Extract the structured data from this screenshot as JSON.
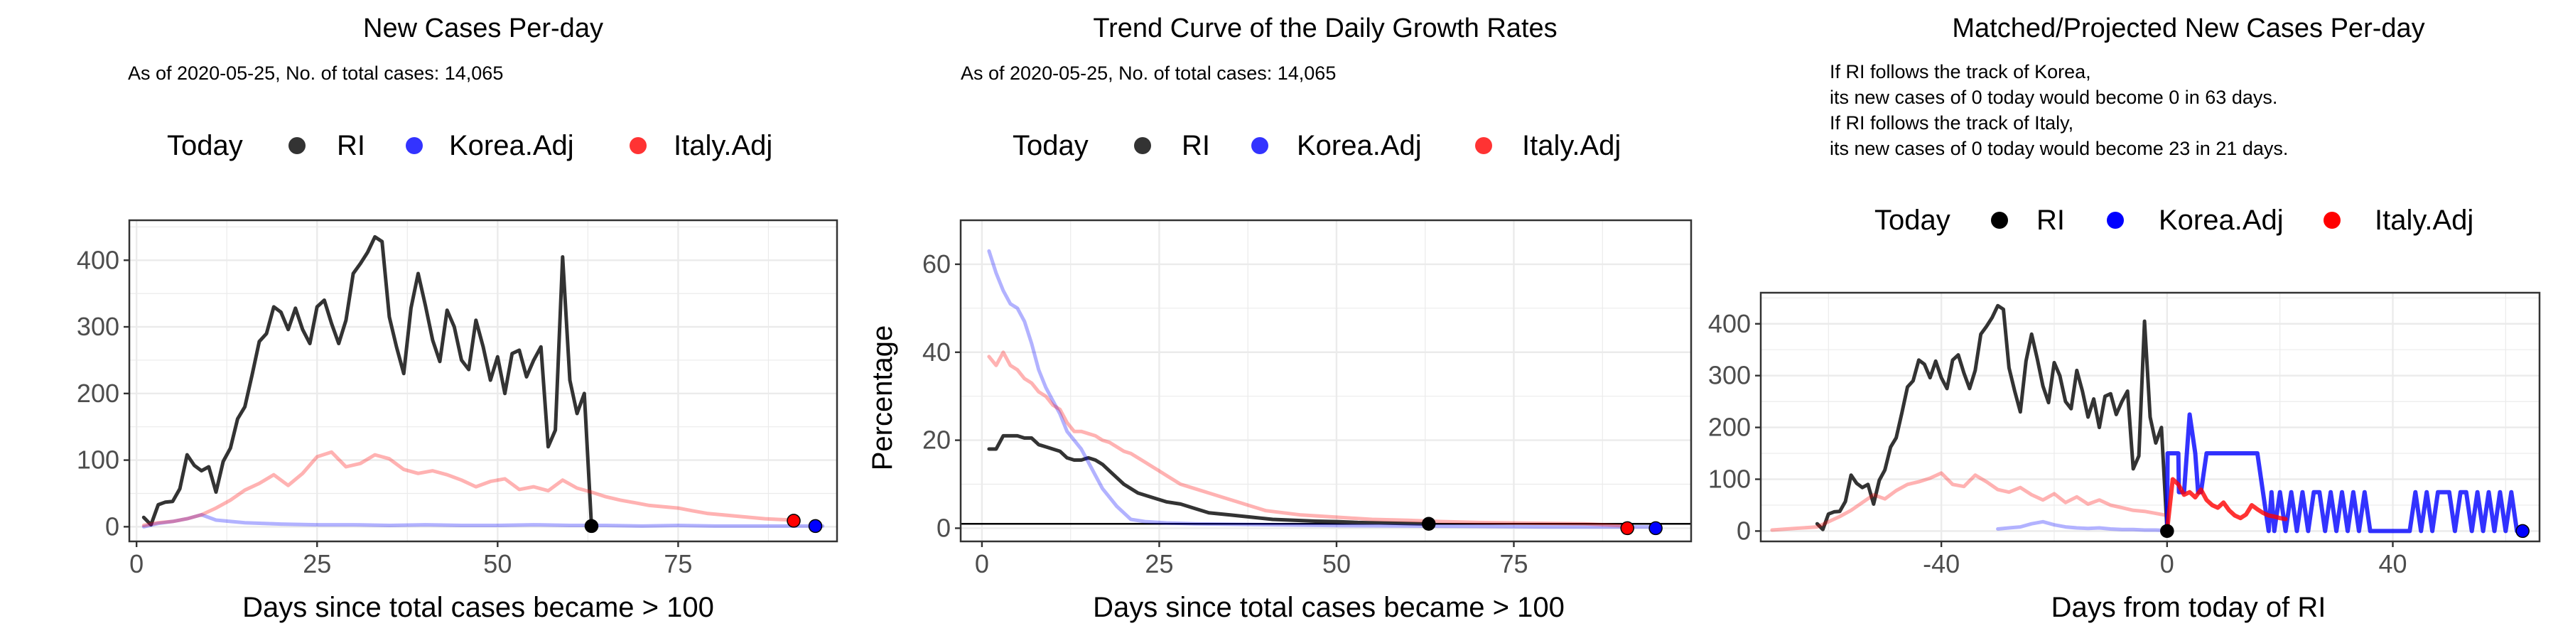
{
  "panels": [
    {
      "title": "New Cases Per-day",
      "subtitle_lines": [
        "As of 2020-05-25, No. of total cases: 14,065"
      ],
      "legend": {
        "title": "Today",
        "items": [
          "RI",
          "Korea.Adj",
          "Italy.Adj"
        ]
      },
      "xlabel": "Days since total cases became > 100",
      "ylabel": ""
    },
    {
      "title": "Trend Curve of the Daily Growth Rates",
      "subtitle_lines": [
        "As of 2020-05-25, No. of total cases: 14,065"
      ],
      "legend": {
        "title": "Today",
        "items": [
          "RI",
          "Korea.Adj",
          "Italy.Adj"
        ]
      },
      "xlabel": "Days since total cases became > 100",
      "ylabel": "Percentage"
    },
    {
      "title": "Matched/Projected New Cases Per-day",
      "subtitle_lines": [
        "If RI follows the track of Korea,",
        "its new cases of 0 today would become 0 in 63 days.",
        "If RI follows the track of Italy,",
        "its new cases of 0 today would become 23 in 21 days."
      ],
      "legend": {
        "title": "Today",
        "items": [
          "RI",
          "Korea.Adj",
          "Italy.Adj"
        ]
      },
      "xlabel": "Days from today of RI",
      "ylabel": ""
    }
  ],
  "colors": {
    "RI": "#000000",
    "Korea.Adj": "#0000ff",
    "Italy.Adj": "#ff0000",
    "grid": "#ebebeb",
    "panel_border": "#333333"
  },
  "chart_data": [
    {
      "type": "line",
      "xlim": [
        -1,
        97
      ],
      "ylim": [
        -22,
        460
      ],
      "xticks": [
        0,
        25,
        50,
        75
      ],
      "yticks": [
        0,
        100,
        200,
        300,
        400
      ],
      "grid": true,
      "legend_position": "top",
      "series": [
        {
          "name": "RI",
          "x": [
            1,
            2,
            3,
            4,
            5,
            6,
            7,
            8,
            9,
            10,
            11,
            12,
            13,
            14,
            15,
            16,
            17,
            18,
            19,
            20,
            21,
            22,
            23,
            24,
            25,
            26,
            27,
            28,
            29,
            30,
            31,
            32,
            33,
            34,
            35,
            36,
            37,
            38,
            39,
            40,
            41,
            42,
            43,
            44,
            45,
            46,
            47,
            48,
            49,
            50,
            51,
            52,
            53,
            54,
            55,
            56,
            57,
            58,
            59,
            60,
            61,
            62,
            63
          ],
          "y": [
            14,
            3,
            33,
            37,
            38,
            57,
            108,
            92,
            84,
            90,
            52,
            98,
            118,
            162,
            180,
            228,
            278,
            290,
            330,
            322,
            296,
            328,
            296,
            275,
            330,
            340,
            305,
            275,
            310,
            380,
            395,
            412,
            435,
            428,
            315,
            270,
            230,
            328,
            380,
            332,
            280,
            248,
            325,
            300,
            250,
            236,
            310,
            270,
            220,
            255,
            200,
            260,
            265,
            225,
            250,
            270,
            120,
            145,
            405,
            220,
            170,
            200,
            2
          ]
        },
        {
          "name": "Korea.Adj",
          "x": [
            1,
            3,
            5,
            7,
            9,
            11,
            13,
            15,
            20,
            25,
            30,
            35,
            40,
            45,
            50,
            55,
            60,
            65,
            70,
            75,
            80,
            85,
            90,
            95
          ],
          "y": [
            0,
            5,
            8,
            12,
            18,
            10,
            8,
            6,
            4,
            3,
            3,
            2,
            3,
            2,
            2,
            3,
            2,
            2,
            1,
            2,
            1,
            1,
            1,
            1
          ],
          "alpha": 0.3
        },
        {
          "name": "Italy.Adj",
          "x": [
            1,
            3,
            5,
            7,
            9,
            11,
            13,
            15,
            17,
            19,
            21,
            23,
            25,
            27,
            29,
            31,
            33,
            35,
            37,
            39,
            41,
            43,
            45,
            47,
            49,
            51,
            53,
            55,
            57,
            59,
            61,
            63,
            65,
            67,
            69,
            71,
            73,
            75,
            77,
            79,
            81,
            83,
            85,
            87,
            89,
            91
          ],
          "y": [
            2,
            6,
            8,
            12,
            18,
            28,
            40,
            55,
            65,
            78,
            62,
            80,
            105,
            112,
            90,
            95,
            108,
            102,
            86,
            80,
            84,
            78,
            70,
            60,
            68,
            72,
            56,
            60,
            54,
            70,
            58,
            52,
            45,
            40,
            36,
            32,
            30,
            28,
            24,
            20,
            18,
            16,
            14,
            12,
            11,
            10
          ],
          "alpha": 0.3
        }
      ],
      "today_points": [
        {
          "series": "RI",
          "x": 63,
          "y": 1
        },
        {
          "series": "Italy.Adj",
          "x": 91,
          "y": 9
        },
        {
          "series": "Korea.Adj",
          "x": 94,
          "y": 1
        }
      ]
    },
    {
      "type": "line",
      "xlim": [
        -3,
        100
      ],
      "ylim": [
        -3,
        70
      ],
      "xticks": [
        0,
        25,
        50,
        75
      ],
      "yticks": [
        0,
        20,
        40,
        60
      ],
      "grid": true,
      "hline": 1,
      "legend_position": "top",
      "series": [
        {
          "name": "RI",
          "x": [
            1,
            2,
            3,
            4,
            5,
            6,
            7,
            8,
            9,
            10,
            11,
            12,
            13,
            14,
            15,
            16,
            17,
            18,
            19,
            20,
            22,
            24,
            26,
            28,
            30,
            32,
            35,
            38,
            41,
            44,
            47,
            50,
            53,
            56,
            59,
            62,
            63
          ],
          "y": [
            18,
            18,
            21,
            21,
            21,
            20.5,
            20.5,
            19,
            18.5,
            18,
            17.5,
            16,
            15.5,
            15.5,
            16,
            15.5,
            14.5,
            13,
            11.5,
            10,
            8,
            7,
            6,
            5.5,
            4.5,
            3.5,
            3,
            2.5,
            2,
            1.8,
            1.6,
            1.5,
            1.3,
            1.2,
            1.1,
            1,
            1
          ]
        },
        {
          "name": "Korea.Adj",
          "x": [
            1,
            2,
            3,
            4,
            5,
            6,
            7,
            8,
            9,
            10,
            11,
            12,
            13,
            14,
            15,
            16,
            17,
            18,
            19,
            20,
            21,
            23,
            26,
            30,
            40,
            50,
            60,
            70,
            80,
            94
          ],
          "y": [
            63,
            58,
            54,
            51,
            50,
            47,
            42,
            36,
            32,
            29,
            26,
            22,
            20,
            18,
            15,
            12,
            9,
            7,
            5,
            3.5,
            2,
            1.5,
            1.2,
            1,
            0.8,
            0.6,
            0.5,
            0.4,
            0.3,
            0.3
          ],
          "alpha": 0.3
        },
        {
          "name": "Italy.Adj",
          "x": [
            1,
            2,
            3,
            4,
            5,
            6,
            7,
            8,
            9,
            10,
            11,
            12,
            13,
            14,
            15,
            16,
            17,
            18,
            19,
            20,
            21,
            22,
            23,
            24,
            25,
            26,
            28,
            30,
            32,
            34,
            36,
            38,
            40,
            45,
            50,
            55,
            60,
            65,
            70,
            75,
            80,
            85,
            91
          ],
          "y": [
            39,
            37,
            40,
            37,
            36,
            34,
            33,
            31,
            30,
            28,
            27,
            24,
            22,
            22,
            21.5,
            21,
            20,
            19.5,
            18.5,
            17.5,
            17,
            16,
            15,
            14,
            13,
            12,
            10,
            9,
            8,
            7,
            6,
            5,
            4,
            3,
            2.5,
            2,
            1.8,
            1.5,
            1.3,
            1.2,
            1.1,
            1,
            0.5
          ],
          "alpha": 0.3
        }
      ],
      "today_points": [
        {
          "series": "RI",
          "x": 63,
          "y": 1
        },
        {
          "series": "Italy.Adj",
          "x": 91,
          "y": 0
        },
        {
          "series": "Korea.Adj",
          "x": 95,
          "y": 0
        }
      ]
    },
    {
      "type": "line",
      "xlim": [
        -72,
        66
      ],
      "ylim": [
        -20,
        460
      ],
      "xticks": [
        -40,
        0,
        40
      ],
      "yticks": [
        0,
        100,
        200,
        300,
        400
      ],
      "grid": true,
      "legend_position": "top",
      "series": [
        {
          "name": "RI",
          "x": [
            -62,
            -61,
            -60,
            -59,
            -58,
            -57,
            -56,
            -55,
            -54,
            -53,
            -52,
            -51,
            -50,
            -49,
            -48,
            -47,
            -46,
            -45,
            -44,
            -43,
            -42,
            -41,
            -40,
            -39,
            -38,
            -37,
            -36,
            -35,
            -34,
            -33,
            -32,
            -31,
            -30,
            -29,
            -28,
            -27,
            -26,
            -25,
            -24,
            -23,
            -22,
            -21,
            -20,
            -19,
            -18,
            -17,
            -16,
            -15,
            -14,
            -13,
            -12,
            -11,
            -10,
            -9,
            -8,
            -7,
            -6,
            -5,
            -4,
            -3,
            -2,
            -1,
            0
          ],
          "y": [
            14,
            3,
            33,
            37,
            38,
            57,
            108,
            92,
            84,
            90,
            52,
            98,
            118,
            162,
            180,
            228,
            278,
            290,
            330,
            322,
            296,
            328,
            296,
            275,
            330,
            340,
            305,
            275,
            310,
            380,
            395,
            412,
            435,
            428,
            315,
            270,
            230,
            328,
            380,
            332,
            280,
            248,
            325,
            300,
            250,
            236,
            310,
            270,
            220,
            255,
            200,
            260,
            265,
            225,
            250,
            270,
            120,
            145,
            405,
            220,
            170,
            200,
            2
          ]
        },
        {
          "name": "Korea.Adj",
          "x": [
            -30,
            -28,
            -26,
            -24,
            -22,
            -20,
            -18,
            -16,
            -14,
            -12,
            -10,
            -8,
            -6,
            -4,
            -2,
            0
          ],
          "y": [
            4,
            6,
            8,
            14,
            18,
            12,
            8,
            6,
            5,
            6,
            4,
            3,
            3,
            2,
            2,
            1
          ],
          "alpha": 0.3
        },
        {
          "name": "Italy.Adj",
          "x": [
            -70,
            -66,
            -62,
            -60,
            -58,
            -56,
            -54,
            -52,
            -50,
            -48,
            -46,
            -44,
            -42,
            -40,
            -38,
            -36,
            -34,
            -32,
            -30,
            -28,
            -26,
            -24,
            -22,
            -20,
            -18,
            -16,
            -14,
            -12,
            -10,
            -8,
            -6,
            -4,
            -2,
            0
          ],
          "y": [
            2,
            5,
            8,
            18,
            28,
            40,
            55,
            70,
            62,
            78,
            90,
            95,
            102,
            112,
            90,
            86,
            108,
            95,
            80,
            75,
            84,
            70,
            60,
            72,
            55,
            66,
            52,
            60,
            50,
            45,
            40,
            38,
            34,
            30
          ],
          "alpha": 0.3
        },
        {
          "name": "Korea.Adj",
          "projection": true,
          "x": [
            0,
            0.1,
            1,
            2,
            2.1,
            3,
            4,
            5,
            5.5,
            6,
            7,
            8,
            8.5,
            9,
            10,
            11,
            11.5,
            12,
            13,
            14,
            15,
            16,
            17,
            18,
            18.5,
            19,
            20,
            21,
            22,
            23,
            24,
            25,
            26,
            27,
            28,
            29,
            30,
            31,
            32,
            33,
            34,
            35,
            36,
            37,
            38,
            39,
            40,
            41,
            42,
            43,
            44,
            45,
            46,
            47,
            48,
            49,
            50,
            51,
            52,
            53,
            54,
            55,
            56,
            57,
            58,
            59,
            60,
            61,
            62,
            63
          ],
          "y": [
            0,
            150,
            150,
            150,
            75,
            75,
            225,
            150,
            75,
            75,
            150,
            150,
            150,
            150,
            150,
            150,
            150,
            150,
            150,
            150,
            150,
            150,
            75,
            0,
            75,
            0,
            75,
            0,
            75,
            0,
            75,
            0,
            75,
            75,
            0,
            75,
            0,
            75,
            0,
            75,
            0,
            75,
            0,
            0,
            0,
            0,
            0,
            0,
            0,
            0,
            75,
            0,
            75,
            0,
            75,
            75,
            75,
            0,
            75,
            75,
            0,
            75,
            0,
            75,
            0,
            75,
            0,
            75,
            0,
            0
          ]
        },
        {
          "name": "Italy.Adj",
          "projection": true,
          "x": [
            0,
            1,
            2,
            3,
            4,
            5,
            6,
            7,
            8,
            9,
            10,
            11,
            12,
            13,
            14,
            15,
            16,
            17,
            18,
            19,
            20,
            21
          ],
          "y": [
            0,
            100,
            90,
            70,
            75,
            65,
            80,
            60,
            50,
            45,
            55,
            40,
            30,
            25,
            32,
            50,
            42,
            35,
            30,
            28,
            25,
            23
          ]
        }
      ],
      "today_points": [
        {
          "series": "RI",
          "x": 0,
          "y": 0
        },
        {
          "series": "Korea.Adj",
          "x": 63,
          "y": 0
        }
      ]
    }
  ]
}
